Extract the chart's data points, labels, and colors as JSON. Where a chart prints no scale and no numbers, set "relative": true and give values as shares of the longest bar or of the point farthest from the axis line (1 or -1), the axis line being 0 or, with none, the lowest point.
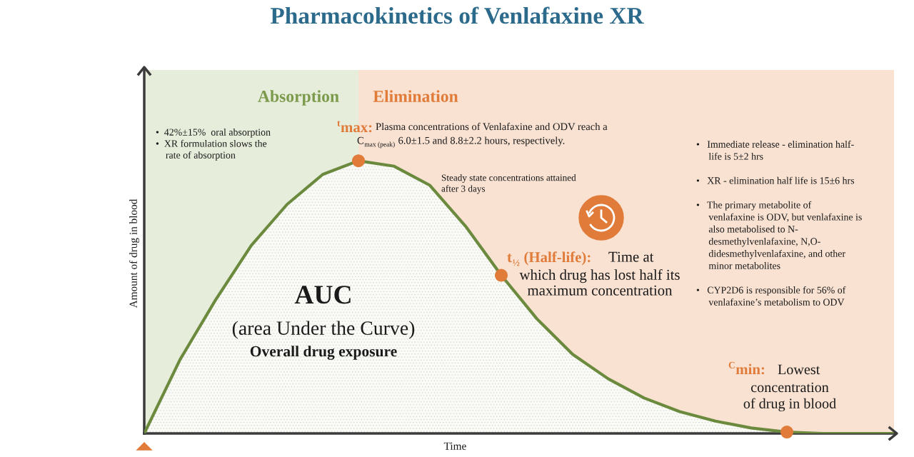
{
  "chart_data": {
    "type": "area",
    "relative": true,
    "title": "Pharmacokinetics of Venlafaxine XR",
    "xlabel": "Time",
    "ylabel": "Amount of drug in blood",
    "categories": [
      null,
      null,
      null,
      null,
      null,
      null,
      null,
      null,
      null,
      null,
      null,
      null,
      null,
      null,
      null,
      null,
      null,
      null,
      null,
      null,
      null,
      null
    ],
    "series": [
      {
        "color": "#6b8a3e",
        "values": [
          0,
          0.27,
          0.49,
          0.69,
          0.84,
          0.95,
          1.0,
          0.98,
          0.91,
          0.76,
          0.58,
          0.42,
          0.29,
          0.2,
          0.13,
          0.08,
          0.045,
          0.02,
          0.005,
          0,
          0,
          0
        ]
      }
    ],
    "annotations": [
      "Absorption",
      "Elimination",
      "•  42%±15%  oral absorption\n•  XR formulation slows the\n    rate of absorption",
      "$^{t}$max:",
      "Plasma concentrations of Venlafaxine and ODV reach a",
      "C$_{max (peak)}$ 6.0±1.5 and 8.8±2.2 hours, respectively.",
      "Steady state concentrations attained\nafter 3 days",
      "t$_{½}$ (Half-life):",
      "Time at",
      "which drug has lost half its\nmaximum concentration",
      "•   Immediate release - elimination half-\n     life is 5±2 hrs\n\n•   XR - elimination half life is 15±6 hrs\n\n•   The primary metabolite of\n     venlafaxine is ODV, but venlafaxine is\n     also metabolised to N-\n     desmethylvenlafaxine, N,O-\n     didesmethylvenlafaxine, and other\n     minor metabolites\n\n•   CYP2D6 is responsible for 56% of\n     venlafaxine’s metabolism to ODV",
      "AUC",
      "(area Under the Curve)",
      "Overall drug exposure",
      "$^{C}$min:",
      "Lowest",
      "concentration\nof drug in blood"
    ]
  }
}
